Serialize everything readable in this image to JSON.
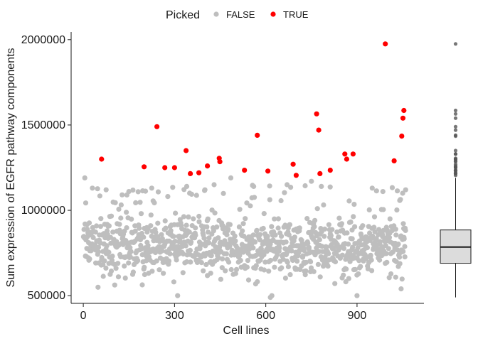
{
  "chart_data": [
    {
      "type": "scatter",
      "title": "",
      "xlabel": "Cell lines",
      "ylabel": "Sum expression of EGFR pathway components",
      "xlim": [
        -40,
        1120
      ],
      "ylim": [
        455000,
        2045000
      ],
      "x_ticks": [
        0,
        300,
        600,
        900
      ],
      "x_tick_labels": [
        "0",
        "300",
        "600",
        "900"
      ],
      "y_ticks": [
        500000,
        1000000,
        1500000,
        2000000
      ],
      "y_tick_labels": [
        "500000",
        "1000000",
        "1500000",
        "2000000"
      ],
      "grid": false,
      "legend": {
        "title": "Picked",
        "placement": "top",
        "entries": [
          {
            "label": "FALSE",
            "color": "#bebebe"
          },
          {
            "label": "TRUE",
            "color": "#ff0000"
          }
        ]
      },
      "series": [
        {
          "name": "FALSE",
          "color": "#bebebe",
          "count": 1000,
          "value_range": [
            490000,
            1190000
          ],
          "note_points_approx": [
            [
              5,
              1190000
            ],
            [
              30,
              1130000
            ],
            [
              75,
              1120000
            ],
            [
              150,
              1110000
            ],
            [
              225,
              1130000
            ],
            [
              340,
              1140000
            ],
            [
              400,
              1120000
            ],
            [
              430,
              1150000
            ],
            [
              485,
              1190000
            ],
            [
              560,
              1140000
            ],
            [
              670,
              1150000
            ],
            [
              750,
              1170000
            ],
            [
              950,
              1130000
            ],
            [
              985,
              1110000
            ],
            [
              1050,
              1100000
            ],
            [
              1060,
              1120000
            ],
            [
              310,
              500000
            ],
            [
              615,
              490000
            ],
            [
              620,
              500000
            ],
            [
              900,
              500000
            ],
            [
              1045,
              540000
            ]
          ]
        },
        {
          "name": "TRUE",
          "color": "#ff0000",
          "points": [
            [
              60,
              1300000
            ],
            [
              200,
              1255000
            ],
            [
              242,
              1490000
            ],
            [
              268,
              1250000
            ],
            [
              300,
              1250000
            ],
            [
              338,
              1350000
            ],
            [
              352,
              1215000
            ],
            [
              380,
              1220000
            ],
            [
              408,
              1260000
            ],
            [
              447,
              1305000
            ],
            [
              449,
              1285000
            ],
            [
              530,
              1235000
            ],
            [
              572,
              1440000
            ],
            [
              607,
              1230000
            ],
            [
              690,
              1270000
            ],
            [
              700,
              1205000
            ],
            [
              767,
              1565000
            ],
            [
              774,
              1470000
            ],
            [
              778,
              1215000
            ],
            [
              812,
              1235000
            ],
            [
              860,
              1330000
            ],
            [
              866,
              1300000
            ],
            [
              887,
              1330000
            ],
            [
              993,
              1975000
            ],
            [
              1022,
              1290000
            ],
            [
              1047,
              1435000
            ],
            [
              1051,
              1540000
            ],
            [
              1054,
              1585000
            ]
          ]
        }
      ]
    },
    {
      "type": "box",
      "ylim": [
        455000,
        2045000
      ],
      "stats": {
        "whisker_low": 490000,
        "q1": 690000,
        "median": 785000,
        "q3": 885000,
        "whisker_high": 1190000
      },
      "outliers": [
        1205000,
        1215000,
        1215000,
        1220000,
        1230000,
        1235000,
        1235000,
        1250000,
        1250000,
        1255000,
        1260000,
        1270000,
        1285000,
        1290000,
        1300000,
        1300000,
        1305000,
        1330000,
        1330000,
        1350000,
        1435000,
        1440000,
        1470000,
        1490000,
        1540000,
        1565000,
        1585000,
        1975000
      ],
      "fill": "#dcdcdc"
    }
  ]
}
